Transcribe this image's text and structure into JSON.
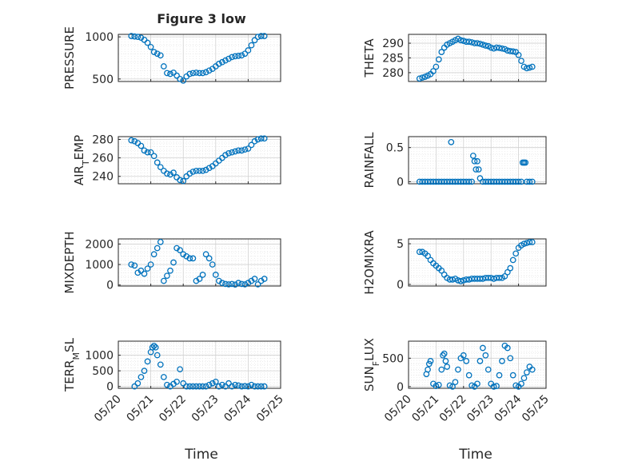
{
  "figure_title": "Figure 3 low",
  "marker_color": "#0072BD",
  "chart_data": [
    {
      "type": "scatter",
      "ylabel_parts": [
        "PRESSURE"
      ],
      "ylim": [
        470,
        1030
      ],
      "yticks": [
        500,
        1000
      ],
      "xlim": [
        0,
        5
      ],
      "grid": true,
      "x": [
        0.4,
        0.5,
        0.6,
        0.7,
        0.8,
        0.9,
        1.0,
        1.1,
        1.2,
        1.3,
        1.4,
        1.5,
        1.6,
        1.7,
        1.8,
        1.9,
        2.0,
        2.1,
        2.2,
        2.3,
        2.4,
        2.5,
        2.6,
        2.7,
        2.8,
        2.9,
        3.0,
        3.1,
        3.2,
        3.3,
        3.4,
        3.5,
        3.6,
        3.7,
        3.8,
        3.9,
        4.0,
        4.1,
        4.2,
        4.3,
        4.4,
        4.5
      ],
      "y": [
        1010,
        1005,
        1000,
        990,
        965,
        930,
        880,
        820,
        800,
        780,
        650,
        570,
        560,
        575,
        540,
        500,
        480,
        530,
        560,
        570,
        575,
        570,
        570,
        580,
        600,
        620,
        650,
        680,
        700,
        720,
        740,
        760,
        770,
        775,
        780,
        800,
        840,
        900,
        960,
        1000,
        1010,
        1010
      ]
    },
    {
      "type": "scatter",
      "ylabel_parts": [
        "THETA"
      ],
      "ylim": [
        277,
        293
      ],
      "yticks": [
        280,
        285,
        290
      ],
      "xlim": [
        0,
        5
      ],
      "grid": true,
      "x": [
        0.4,
        0.5,
        0.6,
        0.7,
        0.8,
        0.9,
        1.0,
        1.1,
        1.2,
        1.3,
        1.4,
        1.5,
        1.6,
        1.7,
        1.8,
        1.9,
        2.0,
        2.1,
        2.2,
        2.3,
        2.4,
        2.5,
        2.6,
        2.7,
        2.8,
        2.9,
        3.0,
        3.1,
        3.2,
        3.3,
        3.4,
        3.5,
        3.6,
        3.7,
        3.8,
        3.9,
        4.0,
        4.1,
        4.2,
        4.3,
        4.4,
        4.5
      ],
      "y": [
        278,
        278.3,
        278.6,
        279,
        279.5,
        280.5,
        282,
        284.5,
        287,
        288.5,
        289.5,
        290,
        290.5,
        291,
        291.5,
        291,
        290.8,
        290.5,
        290.5,
        290.3,
        290,
        290,
        289.8,
        289.5,
        289.2,
        289,
        288.5,
        288.2,
        288.5,
        288.4,
        288.2,
        288,
        287.5,
        287.3,
        287.2,
        287,
        286,
        284,
        282,
        281.5,
        281.7,
        282
      ]
    },
    {
      "type": "scatter",
      "ylabel_parts": [
        "AIR",
        "T",
        "EMP"
      ],
      "ylim": [
        232,
        283
      ],
      "yticks": [
        240,
        260,
        280
      ],
      "xlim": [
        0,
        5
      ],
      "grid": true,
      "x": [
        0.4,
        0.5,
        0.6,
        0.7,
        0.8,
        0.9,
        1.0,
        1.1,
        1.2,
        1.3,
        1.4,
        1.5,
        1.6,
        1.7,
        1.8,
        1.9,
        2.0,
        2.1,
        2.2,
        2.3,
        2.4,
        2.5,
        2.6,
        2.7,
        2.8,
        2.9,
        3.0,
        3.1,
        3.2,
        3.3,
        3.4,
        3.5,
        3.6,
        3.7,
        3.8,
        3.9,
        4.0,
        4.1,
        4.2,
        4.3,
        4.4,
        4.5
      ],
      "y": [
        279,
        278,
        276,
        273,
        268,
        266,
        266,
        262,
        255,
        250,
        246,
        243,
        242,
        244,
        239,
        236,
        235,
        240,
        243,
        245,
        246,
        246,
        246,
        247,
        249,
        251,
        254,
        257,
        260,
        263,
        265,
        266,
        267,
        268,
        268,
        269,
        270,
        274,
        278,
        280,
        281,
        281
      ]
    },
    {
      "type": "scatter",
      "ylabel_parts": [
        "RAINFALL"
      ],
      "ylim": [
        -0.03,
        0.66
      ],
      "yticks": [
        0,
        0.5
      ],
      "xlim": [
        0,
        5
      ],
      "grid": true,
      "x": [
        0.4,
        0.5,
        0.6,
        0.7,
        0.8,
        0.9,
        1.0,
        1.1,
        1.2,
        1.3,
        1.4,
        1.5,
        1.55,
        1.6,
        1.7,
        1.8,
        1.9,
        2.0,
        2.1,
        2.2,
        2.3,
        2.35,
        2.4,
        2.45,
        2.5,
        2.55,
        2.6,
        2.7,
        2.8,
        2.9,
        3.0,
        3.1,
        3.2,
        3.3,
        3.4,
        3.5,
        3.6,
        3.7,
        3.8,
        3.9,
        4.0,
        4.1,
        4.15,
        4.2,
        4.25,
        4.3,
        4.4,
        4.5
      ],
      "y": [
        0,
        0,
        0,
        0,
        0,
        0,
        0,
        0,
        0,
        0,
        0,
        0,
        0.58,
        0,
        0,
        0,
        0,
        0,
        0,
        0,
        0,
        0.38,
        0.3,
        0.18,
        0.3,
        0.18,
        0.05,
        0,
        0,
        0,
        0,
        0,
        0,
        0,
        0,
        0,
        0,
        0,
        0,
        0,
        0,
        0,
        0.28,
        0.28,
        0.28,
        0,
        0,
        0
      ]
    },
    {
      "type": "scatter",
      "ylabel_parts": [
        "MIXDEPTH"
      ],
      "ylim": [
        -50,
        2250
      ],
      "yticks": [
        0,
        1000,
        2000
      ],
      "xlim": [
        0,
        5
      ],
      "grid": true,
      "x": [
        0.4,
        0.5,
        0.6,
        0.7,
        0.8,
        0.9,
        1.0,
        1.1,
        1.2,
        1.3,
        1.4,
        1.5,
        1.6,
        1.7,
        1.8,
        1.9,
        2.0,
        2.1,
        2.2,
        2.3,
        2.4,
        2.5,
        2.6,
        2.7,
        2.8,
        2.9,
        3.0,
        3.1,
        3.2,
        3.3,
        3.4,
        3.5,
        3.6,
        3.7,
        3.8,
        3.9,
        4.0,
        4.1,
        4.2,
        4.3,
        4.4,
        4.5
      ],
      "y": [
        1000,
        950,
        600,
        700,
        550,
        800,
        1000,
        1500,
        1800,
        2100,
        200,
        450,
        700,
        1100,
        1800,
        1700,
        1500,
        1400,
        1300,
        1300,
        200,
        300,
        500,
        1500,
        1300,
        1000,
        500,
        200,
        100,
        50,
        30,
        50,
        20,
        100,
        50,
        30,
        100,
        200,
        300,
        30,
        200,
        300
      ]
    },
    {
      "type": "scatter",
      "ylabel_parts": [
        "H2OMIXRA"
      ],
      "ylim": [
        -0.2,
        5.6
      ],
      "yticks": [
        0,
        5
      ],
      "xlim": [
        0,
        5
      ],
      "grid": true,
      "x": [
        0.4,
        0.5,
        0.6,
        0.7,
        0.8,
        0.9,
        1.0,
        1.1,
        1.2,
        1.3,
        1.4,
        1.5,
        1.6,
        1.7,
        1.8,
        1.9,
        2.0,
        2.1,
        2.2,
        2.3,
        2.4,
        2.5,
        2.6,
        2.7,
        2.8,
        2.9,
        3.0,
        3.1,
        3.2,
        3.3,
        3.4,
        3.5,
        3.6,
        3.7,
        3.8,
        3.9,
        4.0,
        4.1,
        4.2,
        4.3,
        4.4,
        4.5
      ],
      "y": [
        4,
        4,
        3.8,
        3.5,
        3,
        2.6,
        2.3,
        2,
        1.7,
        1.2,
        0.8,
        0.6,
        0.6,
        0.7,
        0.5,
        0.4,
        0.5,
        0.6,
        0.6,
        0.7,
        0.7,
        0.7,
        0.7,
        0.7,
        0.8,
        0.8,
        0.8,
        0.7,
        0.8,
        0.8,
        0.8,
        1,
        1.5,
        2,
        3,
        3.8,
        4.5,
        4.8,
        5,
        5.1,
        5.2,
        5.2
      ]
    },
    {
      "type": "scatter",
      "ylabel_parts": [
        "TERR",
        "M",
        "SL"
      ],
      "ylim": [
        -60,
        1450
      ],
      "yticks": [
        0,
        500,
        1000
      ],
      "xlim": [
        0,
        5
      ],
      "grid": true,
      "x": [
        0.5,
        0.6,
        0.7,
        0.8,
        0.9,
        1.0,
        1.05,
        1.1,
        1.15,
        1.2,
        1.3,
        1.4,
        1.5,
        1.6,
        1.7,
        1.8,
        1.9,
        2.0,
        2.1,
        2.2,
        2.3,
        2.4,
        2.5,
        2.6,
        2.7,
        2.8,
        2.9,
        3.0,
        3.1,
        3.2,
        3.3,
        3.4,
        3.5,
        3.6,
        3.7,
        3.8,
        3.9,
        4.0,
        4.1,
        4.2,
        4.3,
        4.4,
        4.5
      ],
      "y": [
        0,
        100,
        300,
        500,
        800,
        1100,
        1250,
        1300,
        1250,
        1000,
        700,
        300,
        50,
        0,
        80,
        150,
        550,
        100,
        0,
        0,
        0,
        0,
        0,
        0,
        0,
        50,
        100,
        150,
        0,
        50,
        0,
        100,
        0,
        50,
        30,
        0,
        10,
        0,
        50,
        0,
        0,
        0,
        0
      ]
    },
    {
      "type": "scatter",
      "ylabel_parts": [
        "SUN",
        "F",
        "LUX"
      ],
      "ylim": [
        -30,
        800
      ],
      "yticks": [
        0,
        500
      ],
      "xlim": [
        0,
        5
      ],
      "grid": true,
      "x": [
        0.65,
        0.7,
        0.75,
        0.8,
        0.9,
        1.0,
        1.1,
        1.2,
        1.25,
        1.3,
        1.35,
        1.4,
        1.5,
        1.6,
        1.7,
        1.8,
        1.9,
        2.0,
        2.1,
        2.2,
        2.3,
        2.4,
        2.5,
        2.6,
        2.7,
        2.8,
        2.9,
        3.0,
        3.1,
        3.2,
        3.3,
        3.4,
        3.5,
        3.6,
        3.7,
        3.8,
        3.9,
        4.0,
        4.1,
        4.2,
        4.3,
        4.4,
        4.5
      ],
      "y": [
        220,
        300,
        400,
        450,
        50,
        10,
        30,
        300,
        550,
        580,
        450,
        350,
        20,
        0,
        80,
        300,
        500,
        550,
        450,
        200,
        20,
        0,
        50,
        450,
        680,
        550,
        300,
        50,
        0,
        10,
        200,
        450,
        720,
        680,
        500,
        200,
        20,
        0,
        50,
        150,
        250,
        350,
        300
      ]
    }
  ],
  "x_tick_labels": [
    "05/20",
    "05/21",
    "05/22",
    "05/23",
    "05/24",
    "05/25"
  ],
  "xlabel": "Time"
}
